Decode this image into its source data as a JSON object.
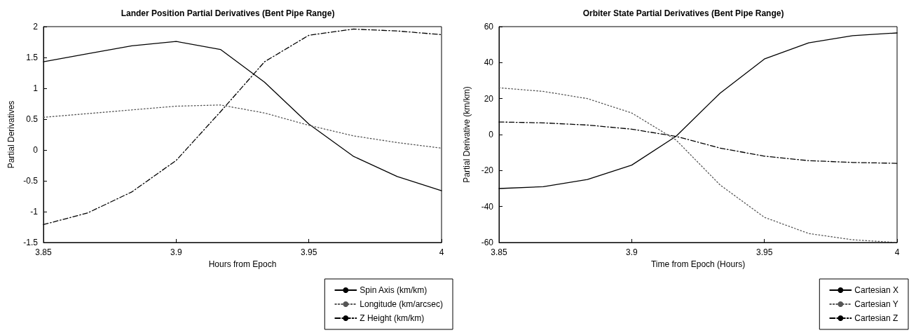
{
  "chart_data": [
    {
      "type": "line",
      "title": "Lander Position Partial Derivatives (Bent Pipe Range)",
      "xlabel": "Hours from Epoch",
      "ylabel": "Partial Derivatives",
      "x": [
        3.85,
        3.8667,
        3.8833,
        3.9,
        3.9167,
        3.9333,
        3.95,
        3.9667,
        3.9833,
        4.0
      ],
      "series": [
        {
          "name": "Spin Axis (km/km)",
          "color": "#000000",
          "line_style": "solid",
          "values": [
            1.43,
            1.56,
            1.69,
            1.76,
            1.63,
            1.1,
            0.42,
            -0.1,
            -0.43,
            -0.66
          ]
        },
        {
          "name": "Longitude (km/arcsec)",
          "color": "#555555",
          "line_style": "dotted",
          "values": [
            0.53,
            0.59,
            0.65,
            0.71,
            0.73,
            0.6,
            0.4,
            0.23,
            0.12,
            0.03
          ]
        },
        {
          "name": "Z Height (km/km)",
          "color": "#000000",
          "line_style": "dashed",
          "values": [
            -1.21,
            -1.02,
            -0.68,
            -0.17,
            0.62,
            1.43,
            1.86,
            1.96,
            1.93,
            1.87
          ]
        }
      ],
      "xlim": [
        3.85,
        4
      ],
      "xticks": [
        3.85,
        3.9,
        3.95,
        4
      ],
      "ylim": [
        -1.5,
        2
      ],
      "yticks": [
        -1.5,
        -1,
        -0.5,
        0,
        0.5,
        1,
        1.5,
        2
      ],
      "grid": false,
      "legend": "bottom right",
      "marker": "none"
    },
    {
      "type": "line",
      "title": "Orbiter State Partial Derivatives (Bent Pipe Range)",
      "xlabel": "Time from Epoch (Hours)",
      "ylabel": "Partial Derivative (km/km)",
      "x": [
        3.85,
        3.8667,
        3.8833,
        3.9,
        3.9167,
        3.9333,
        3.95,
        3.9667,
        3.9833,
        4.0
      ],
      "series": [
        {
          "name": "Cartesian X",
          "color": "#000000",
          "line_style": "solid",
          "values": [
            -30,
            -29,
            -25,
            -17,
            -1,
            23,
            42,
            51,
            55,
            56.5
          ]
        },
        {
          "name": "Cartesian Y",
          "color": "#555555",
          "line_style": "dotted",
          "values": [
            26,
            24,
            20,
            12,
            -3,
            -28,
            -46,
            -55,
            -58.5,
            -60
          ]
        },
        {
          "name": "Cartesian Z",
          "color": "#000000",
          "line_style": "dashed",
          "values": [
            7,
            6.5,
            5.3,
            3,
            -1,
            -7.5,
            -12,
            -14.5,
            -15.5,
            -16
          ]
        }
      ],
      "xlim": [
        3.85,
        4
      ],
      "xticks": [
        3.85,
        3.9,
        3.95,
        4
      ],
      "ylim": [
        -60,
        60
      ],
      "yticks": [
        -60,
        -40,
        -20,
        0,
        20,
        40,
        60
      ],
      "grid": false,
      "legend": "bottom right",
      "marker": "none"
    }
  ]
}
